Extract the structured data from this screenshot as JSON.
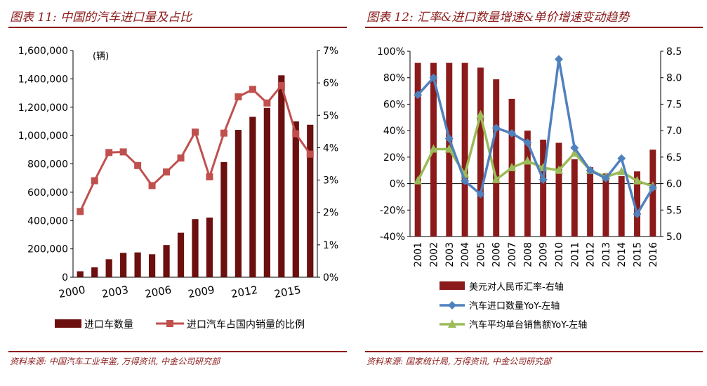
{
  "left": {
    "title": "图表 11: 中国的汽车进口量及占比",
    "source": "资料来源: 中国汽车工业年鉴, 万得资讯, 中金公司研究部",
    "chart_data": {
      "type": "bar+line",
      "categories": [
        "2000",
        "2001",
        "2002",
        "2003",
        "2004",
        "2005",
        "2006",
        "2007",
        "2008",
        "2009",
        "2010",
        "2011",
        "2012",
        "2013",
        "2014",
        "2015",
        "2016"
      ],
      "x_tick_labels": [
        "2000",
        "2003",
        "2006",
        "2009",
        "2012",
        "2015"
      ],
      "unit_label": "(辆)",
      "left_axis": {
        "min": 0,
        "max": 1600000,
        "ticks": [
          "0",
          "200,000",
          "400,000",
          "600,000",
          "800,000",
          "1,000,000",
          "1,200,000",
          "1,400,000",
          "1,600,000"
        ]
      },
      "right_axis": {
        "min": 0,
        "max": 7,
        "ticks": [
          "0%",
          "1%",
          "2%",
          "3%",
          "4%",
          "5%",
          "6%",
          "7%"
        ]
      },
      "series": [
        {
          "name": "进口车数量",
          "type": "bar",
          "axis": "left",
          "color": "#6B0F0F",
          "values": [
            42000,
            70000,
            127000,
            172000,
            175000,
            162000,
            227000,
            314000,
            410000,
            421000,
            813000,
            1040000,
            1132000,
            1195000,
            1425000,
            1100000,
            1076000
          ]
        },
        {
          "name": "进口汽车占国内销量的比例",
          "type": "line",
          "axis": "right",
          "color": "#C0504D",
          "values": [
            2.03,
            2.98,
            3.85,
            3.87,
            3.45,
            2.83,
            3.25,
            3.68,
            4.48,
            3.1,
            4.45,
            5.57,
            5.8,
            5.38,
            5.92,
            4.43,
            3.8
          ]
        }
      ],
      "legend_position": "bottom",
      "grid": false
    }
  },
  "right": {
    "title": "图表 12: 汇率&进口数量增速&单价增速变动趋势",
    "source": "资料来源: 国家统计局, 万得资讯, 中金公司研究部",
    "chart_data": {
      "type": "bar+line",
      "categories": [
        "2001",
        "2002",
        "2003",
        "2004",
        "2005",
        "2006",
        "2007",
        "2008",
        "2009",
        "2010",
        "2011",
        "2012",
        "2013",
        "2014",
        "2015",
        "2016"
      ],
      "left_axis": {
        "min": -40,
        "max": 100,
        "ticks": [
          "-40%",
          "-20%",
          "0%",
          "20%",
          "40%",
          "60%",
          "80%",
          "100%"
        ]
      },
      "right_axis": {
        "min": 5.0,
        "max": 8.5,
        "ticks": [
          "5.0",
          "5.5",
          "6.0",
          "6.5",
          "7.0",
          "7.5",
          "8.0",
          "8.5"
        ]
      },
      "series": [
        {
          "name": "美元对人民币汇率-右轴",
          "type": "bar",
          "axis": "right",
          "color": "#8B1A1A",
          "values": [
            8.28,
            8.28,
            8.28,
            8.28,
            8.19,
            7.97,
            7.6,
            7.0,
            6.83,
            6.77,
            6.46,
            6.31,
            6.19,
            6.14,
            6.23,
            6.64
          ]
        },
        {
          "name": "汽车进口数量YoY-左轴",
          "type": "line",
          "axis": "left",
          "color": "#4F81BD",
          "marker": "diamond",
          "values": [
            67,
            80,
            34,
            2,
            -8,
            42,
            38,
            31,
            3,
            94,
            27,
            10,
            4,
            19,
            -23,
            -3
          ]
        },
        {
          "name": "汽车平均单台销售额YoY-左轴",
          "type": "line",
          "axis": "left",
          "color": "#9BBB59",
          "marker": "triangle",
          "values": [
            2,
            26,
            26,
            7,
            52,
            3,
            12,
            17,
            12,
            10,
            23,
            10,
            5,
            9,
            2,
            -2
          ]
        }
      ],
      "legend_position": "bottom",
      "grid": false
    }
  }
}
